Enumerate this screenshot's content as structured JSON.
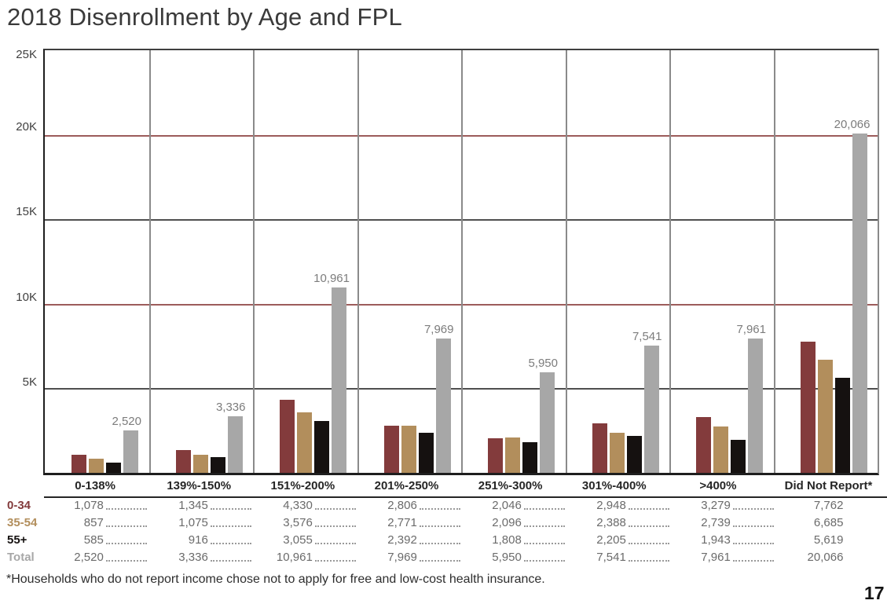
{
  "title": "2018 Disenrollment by Age and FPL",
  "footnote": "*Households who do not report income chose not to apply for free and low-cost health insurance.",
  "page_number": "17",
  "colors": {
    "age_0_34": "#833b3c",
    "age_35_54": "#b28e5c",
    "age_55_plus": "#151110",
    "total": "#a7a7a7",
    "gridline": "#4f4f4f",
    "gridline_accent": "#9c5c5b",
    "column_separator": "#8a8a8a",
    "bar_value_label": "#7c7c7c"
  },
  "chart_data": {
    "type": "bar",
    "title": "2018 Disenrollment by Age and FPL",
    "categories": [
      "0-138%",
      "139%-150%",
      "151%-200%",
      "201%-250%",
      "251%-300%",
      "301%-400%",
      ">400%",
      "Did Not Report*"
    ],
    "series": [
      {
        "name": "0-34",
        "color_key": "age_0_34",
        "values": [
          1078,
          1345,
          4330,
          2806,
          2046,
          2948,
          3279,
          7762
        ]
      },
      {
        "name": "35-54",
        "color_key": "age_35_54",
        "values": [
          857,
          1075,
          3576,
          2771,
          2096,
          2388,
          2739,
          6685
        ]
      },
      {
        "name": "55+",
        "color_key": "age_55_plus",
        "values": [
          585,
          916,
          3055,
          2392,
          1808,
          2205,
          1943,
          5619
        ]
      },
      {
        "name": "Total",
        "color_key": "total",
        "show_labels": true,
        "values": [
          2520,
          3336,
          10961,
          7969,
          5950,
          7541,
          7961,
          20066
        ],
        "labels": [
          "2,520",
          "3,336",
          "10,961",
          "7,969",
          "5,950",
          "7,541",
          "7,961",
          "20,066"
        ]
      }
    ],
    "ylim": [
      0,
      25000
    ],
    "yticks": [
      {
        "value": 25000,
        "label": "25K"
      },
      {
        "value": 20000,
        "label": "20K"
      },
      {
        "value": 15000,
        "label": "15K"
      },
      {
        "value": 10000,
        "label": "10K"
      },
      {
        "value": 5000,
        "label": "5K"
      }
    ],
    "gridlines": [
      {
        "value": 20000,
        "style": "accent"
      },
      {
        "value": 15000,
        "style": "normal"
      },
      {
        "value": 10000,
        "style": "accent"
      },
      {
        "value": 5000,
        "style": "normal"
      }
    ],
    "xlabel": "",
    "ylabel": "",
    "legend_position": "table-row-labels",
    "grid": "horizontal lines every 5K plus vertical category separators"
  },
  "table": {
    "headers": [
      "0-138%",
      "139%-150%",
      "151%-200%",
      "201%-250%",
      "251%-300%",
      "301%-400%",
      ">400%",
      "Did Not Report*"
    ],
    "rows": [
      {
        "label": "0-34",
        "color_key": "age_0_34",
        "cells": [
          "1,078",
          "1,345",
          "4,330",
          "2,806",
          "2,046",
          "2,948",
          "3,279",
          "7,762"
        ]
      },
      {
        "label": "35-54",
        "color_key": "age_35_54",
        "cells": [
          "857",
          "1,075",
          "3,576",
          "2,771",
          "2,096",
          "2,388",
          "2,739",
          "6,685"
        ]
      },
      {
        "label": "55+",
        "color_key": "age_55_plus",
        "cells": [
          "585",
          "916",
          "3,055",
          "2,392",
          "1,808",
          "2,205",
          "1,943",
          "5,619"
        ]
      },
      {
        "label": "Total",
        "color_key": "total",
        "cells": [
          "2,520",
          "3,336",
          "10,961",
          "7,969",
          "5,950",
          "7,541",
          "7,961",
          "20,066"
        ]
      }
    ]
  }
}
